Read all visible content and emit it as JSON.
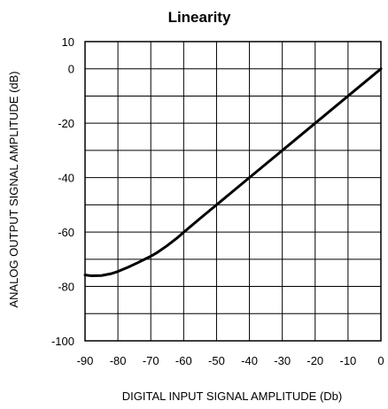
{
  "chart_data": {
    "type": "line",
    "title": "Linearity",
    "xlabel": "DIGITAL INPUT SIGNAL AMPLITUDE (Db)",
    "ylabel": "ANALOG OUTPUT SIGNAL AMPLITUDE (dB)",
    "xlim": [
      -90,
      0
    ],
    "ylim": [
      -100,
      10
    ],
    "x_tick_labels": [
      "-90",
      "-80",
      "-70",
      "-60",
      "-50",
      "-40",
      "-30",
      "-20",
      "-10",
      "0"
    ],
    "y_tick_labels": [
      "10",
      "0",
      "-20",
      "-40",
      "-60",
      "-80",
      "-100"
    ],
    "grid": true,
    "series": [
      {
        "color": "#000000",
        "x": [
          -90,
          -88,
          -85,
          -82,
          -80,
          -77,
          -74,
          -72,
          -70,
          -68,
          -65,
          -62,
          -60,
          -55,
          -50,
          -45,
          -40,
          -35,
          -30,
          -25,
          -20,
          -15,
          -10,
          -5,
          0
        ],
        "y": [
          -75.8,
          -76.1,
          -76.0,
          -75.3,
          -74.5,
          -73.0,
          -71.3,
          -70.1,
          -68.9,
          -67.5,
          -65.0,
          -62.2,
          -60.1,
          -55.0,
          -50.0,
          -45.0,
          -40.0,
          -35.0,
          -30.0,
          -25.0,
          -20.0,
          -15.0,
          -10.0,
          -5.0,
          0.0
        ]
      }
    ]
  }
}
